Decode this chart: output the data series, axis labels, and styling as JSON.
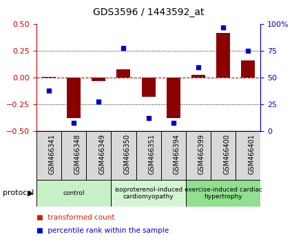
{
  "title": "GDS3596 / 1443592_at",
  "samples": [
    "GSM466341",
    "GSM466348",
    "GSM466349",
    "GSM466350",
    "GSM466351",
    "GSM466394",
    "GSM466399",
    "GSM466400",
    "GSM466401"
  ],
  "red_values": [
    0.01,
    -0.38,
    -0.03,
    0.08,
    -0.18,
    -0.38,
    0.03,
    0.42,
    0.16
  ],
  "blue_values": [
    38,
    8,
    28,
    78,
    12,
    8,
    60,
    97,
    75
  ],
  "ylim_left": [
    -0.5,
    0.5
  ],
  "ylim_right": [
    0,
    100
  ],
  "yticks_left": [
    -0.5,
    -0.25,
    0.0,
    0.25,
    0.5
  ],
  "yticks_right": [
    0,
    25,
    50,
    75,
    100
  ],
  "ytick_labels_right": [
    "0",
    "25",
    "50",
    "75",
    "100%"
  ],
  "left_axis_color": "#cc0000",
  "right_axis_color": "#0000cc",
  "bar_color": "#8b0000",
  "dot_color": "#0000cc",
  "groups": [
    {
      "label": "control",
      "start": 0,
      "end": 3,
      "color": "#c8f0c8"
    },
    {
      "label": "isoproterenol-induced\ncardiomyopathy",
      "start": 3,
      "end": 6,
      "color": "#d4f5d4"
    },
    {
      "label": "exercise-induced cardiac\nhypertrophy",
      "start": 6,
      "end": 9,
      "color": "#90e090"
    }
  ],
  "protocol_label": "protocol",
  "legend_items": [
    {
      "color": "#cc2200",
      "label": "transformed count"
    },
    {
      "color": "#0000cc",
      "label": "percentile rank within the sample"
    }
  ]
}
